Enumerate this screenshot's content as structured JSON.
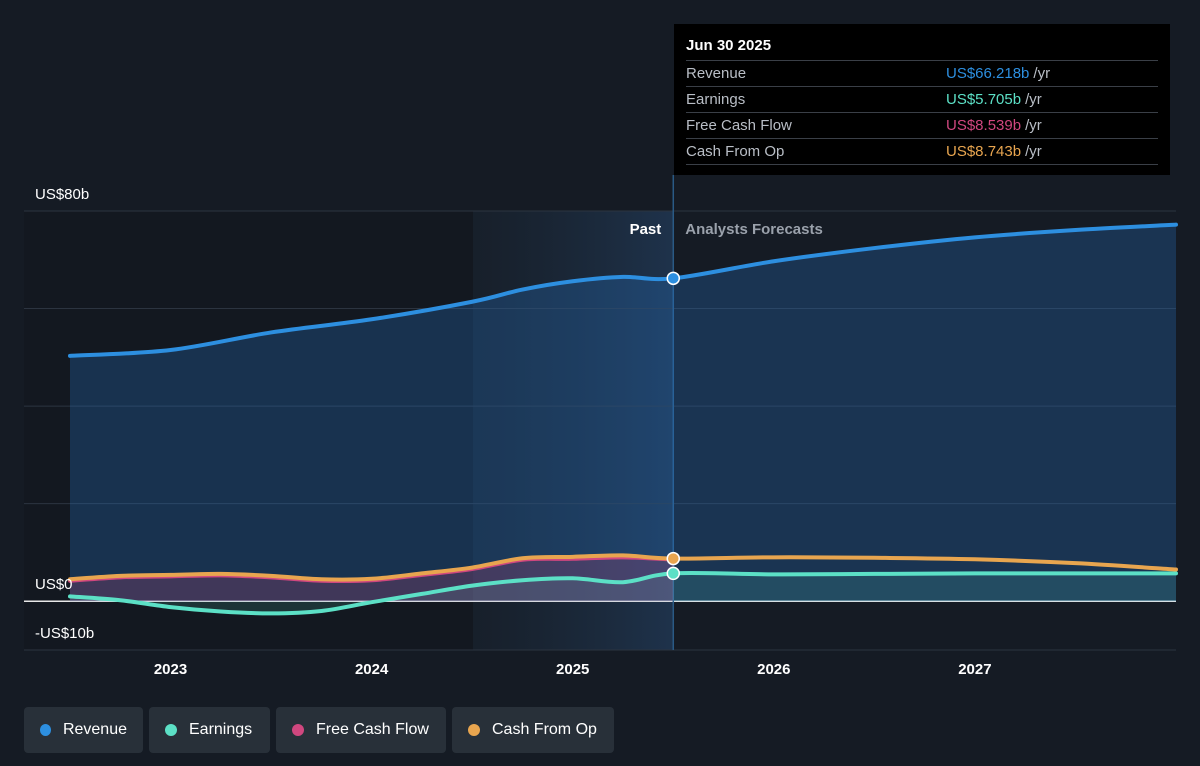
{
  "chart_data": {
    "type": "line",
    "y_axis": {
      "unit": "US$ billions",
      "ylim": [
        -10,
        80
      ],
      "labels": [
        {
          "value": 80,
          "text": "US$80b"
        },
        {
          "value": 0,
          "text": "US$0"
        },
        {
          "value": -10,
          "text": "-US$10b"
        }
      ],
      "gridlines": [
        80,
        60,
        40,
        20,
        0,
        -10
      ]
    },
    "x_axis": {
      "xlim": [
        2022.5,
        2028.0
      ],
      "ticks": [
        {
          "value": 2023,
          "text": "2023"
        },
        {
          "value": 2024,
          "text": "2024"
        },
        {
          "value": 2025,
          "text": "2025"
        },
        {
          "value": 2026,
          "text": "2026"
        },
        {
          "value": 2027,
          "text": "2027"
        }
      ]
    },
    "divider": {
      "x": 2025.5,
      "past_label": "Past",
      "forecast_label": "Analysts Forecasts",
      "shaded_from": 2024.5
    },
    "series": [
      {
        "name": "Revenue",
        "color": "#2d8fe0",
        "fill": true,
        "points": [
          [
            2022.5,
            50.3
          ],
          [
            2023.0,
            51.5
          ],
          [
            2023.5,
            55.1
          ],
          [
            2024.0,
            57.8
          ],
          [
            2024.5,
            61.4
          ],
          [
            2024.75,
            63.9
          ],
          [
            2025.0,
            65.6
          ],
          [
            2025.25,
            66.5
          ],
          [
            2025.5,
            66.2
          ],
          [
            2026.0,
            69.7
          ],
          [
            2026.5,
            72.4
          ],
          [
            2027.0,
            74.6
          ],
          [
            2027.5,
            76.1
          ],
          [
            2028.0,
            77.2
          ]
        ]
      },
      {
        "name": "Earnings",
        "color": "#5ce0c6",
        "fill": true,
        "points": [
          [
            2022.5,
            1.0
          ],
          [
            2022.75,
            0.2
          ],
          [
            2023.0,
            -1.2
          ],
          [
            2023.25,
            -2.1
          ],
          [
            2023.5,
            -2.5
          ],
          [
            2023.75,
            -2.0
          ],
          [
            2024.0,
            -0.2
          ],
          [
            2024.25,
            1.5
          ],
          [
            2024.5,
            3.2
          ],
          [
            2024.75,
            4.3
          ],
          [
            2025.0,
            4.7
          ],
          [
            2025.25,
            3.9
          ],
          [
            2025.5,
            5.705
          ],
          [
            2026.0,
            5.5
          ],
          [
            2026.5,
            5.6
          ],
          [
            2027.0,
            5.7
          ],
          [
            2027.5,
            5.7
          ],
          [
            2028.0,
            5.7
          ]
        ]
      },
      {
        "name": "Free Cash Flow",
        "color": "#d0477f",
        "fill": true,
        "points": [
          [
            2022.5,
            4.2
          ],
          [
            2022.75,
            4.9
          ],
          [
            2023.0,
            5.1
          ],
          [
            2023.25,
            5.3
          ],
          [
            2023.5,
            4.9
          ],
          [
            2023.75,
            4.2
          ],
          [
            2024.0,
            4.3
          ],
          [
            2024.25,
            5.4
          ],
          [
            2024.5,
            6.6
          ],
          [
            2024.75,
            8.5
          ],
          [
            2025.0,
            8.7
          ],
          [
            2025.25,
            9.0
          ],
          [
            2025.5,
            8.539
          ]
        ]
      },
      {
        "name": "Cash From Op",
        "color": "#e8a54f",
        "fill": false,
        "points": [
          [
            2022.5,
            4.5
          ],
          [
            2022.75,
            5.2
          ],
          [
            2023.0,
            5.4
          ],
          [
            2023.25,
            5.6
          ],
          [
            2023.5,
            5.2
          ],
          [
            2023.75,
            4.5
          ],
          [
            2024.0,
            4.6
          ],
          [
            2024.25,
            5.7
          ],
          [
            2024.5,
            6.9
          ],
          [
            2024.75,
            8.8
          ],
          [
            2025.0,
            9.1
          ],
          [
            2025.25,
            9.4
          ],
          [
            2025.5,
            8.743
          ],
          [
            2026.0,
            9.0
          ],
          [
            2026.5,
            8.9
          ],
          [
            2027.0,
            8.6
          ],
          [
            2027.5,
            7.8
          ],
          [
            2028.0,
            6.5
          ]
        ]
      }
    ]
  },
  "tooltip": {
    "date": "Jun 30 2025",
    "rows": [
      {
        "label": "Revenue",
        "value": "US$66.218b",
        "unit": "/yr",
        "color": "#2d8fe0"
      },
      {
        "label": "Earnings",
        "value": "US$5.705b",
        "unit": "/yr",
        "color": "#5ce0c6"
      },
      {
        "label": "Free Cash Flow",
        "value": "US$8.539b",
        "unit": "/yr",
        "color": "#d0477f"
      },
      {
        "label": "Cash From Op",
        "value": "US$8.743b",
        "unit": "/yr",
        "color": "#e8a54f"
      }
    ]
  },
  "legend": [
    {
      "label": "Revenue",
      "color": "#2d8fe0"
    },
    {
      "label": "Earnings",
      "color": "#5ce0c6"
    },
    {
      "label": "Free Cash Flow",
      "color": "#d0477f"
    },
    {
      "label": "Cash From Op",
      "color": "#e8a54f"
    }
  ]
}
